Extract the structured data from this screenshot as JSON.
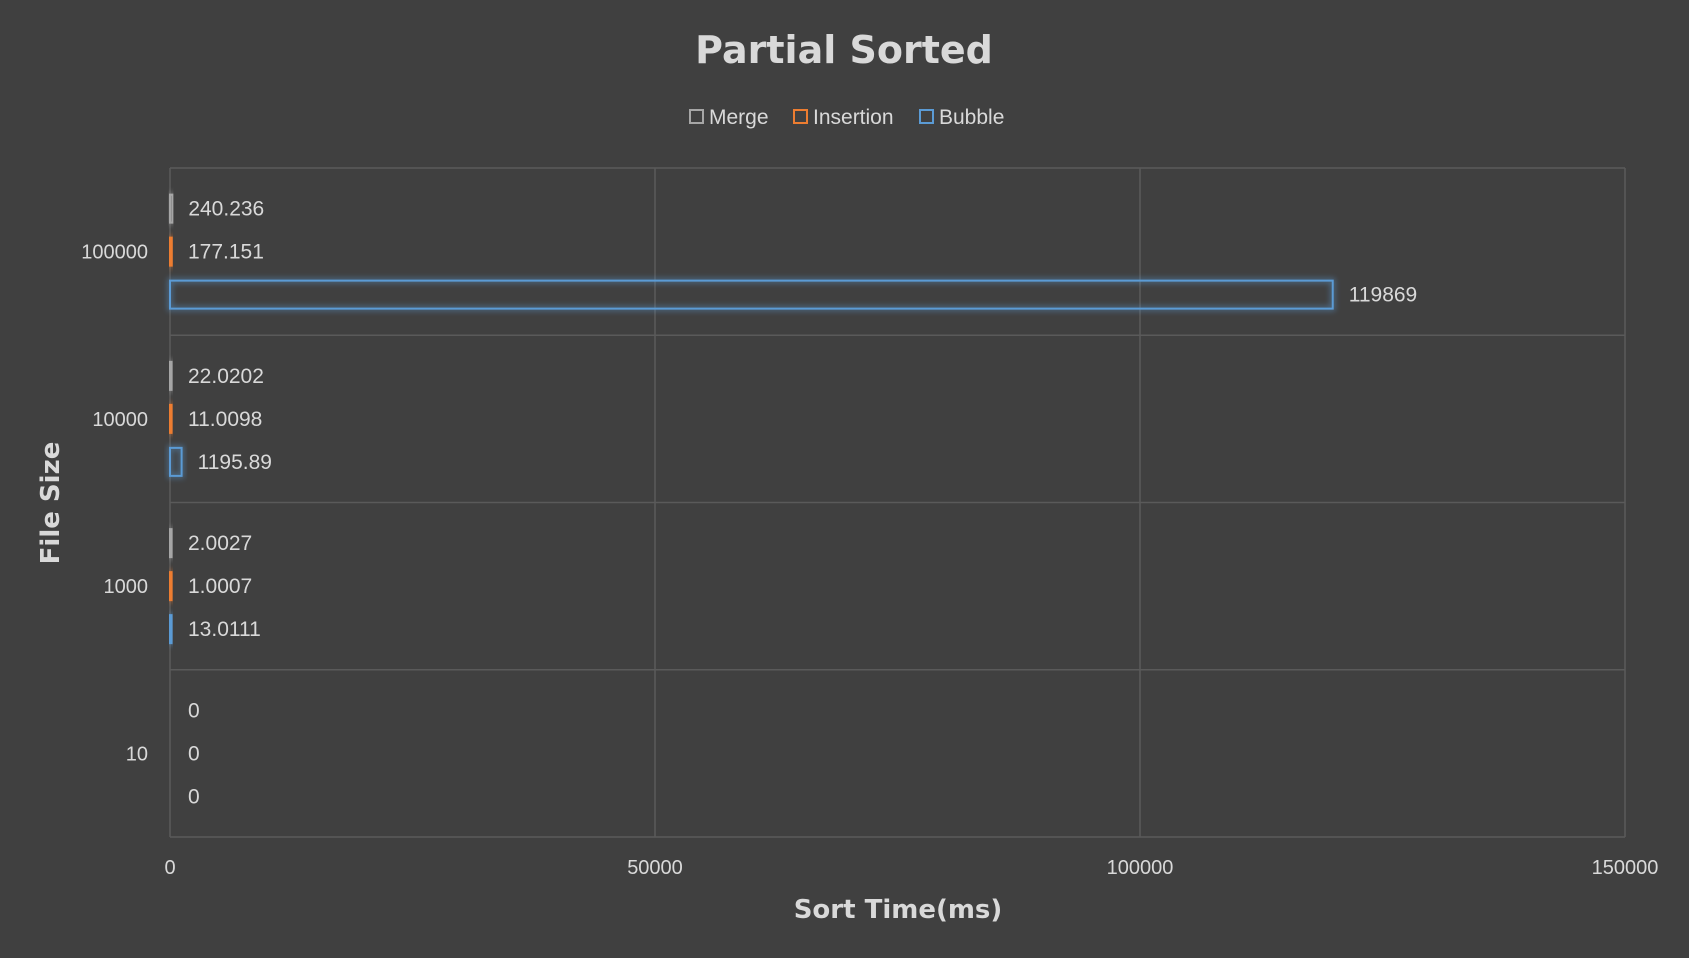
{
  "chart_data": {
    "type": "bar",
    "orientation": "horizontal",
    "title": "Partial Sorted",
    "xlabel": "Sort Time(ms)",
    "ylabel": "File Size",
    "xlim": [
      0,
      150000
    ],
    "xticks": [
      "0",
      "50000",
      "100000",
      "150000"
    ],
    "xtick_values": [
      0,
      50000,
      100000,
      150000
    ],
    "categories": [
      "100000",
      "10000",
      "1000",
      "10"
    ],
    "legend_position": "top",
    "grid": true,
    "series": [
      {
        "name": "Merge",
        "color": "#a6a6a6",
        "values": [
          240.236,
          22.0202,
          2.0027,
          0
        ],
        "labels": [
          "240.236",
          "22.0202",
          "2.0027",
          "0"
        ]
      },
      {
        "name": "Insertion",
        "color": "#ed7d31",
        "values": [
          177.151,
          11.0098,
          1.0007,
          0
        ],
        "labels": [
          "177.151",
          "11.0098",
          "1.0007",
          "0"
        ]
      },
      {
        "name": "Bubble",
        "color": "#5b9bd5",
        "values": [
          119869,
          1195.89,
          13.0111,
          0
        ],
        "labels": [
          "119869",
          "1195.89",
          "13.0111",
          "0"
        ]
      }
    ]
  }
}
